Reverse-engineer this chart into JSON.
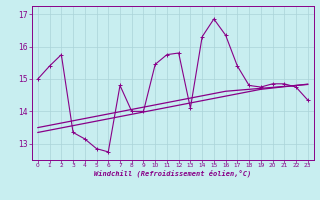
{
  "xlabel": "Windchill (Refroidissement éolien,°C)",
  "bg_color": "#c8eef0",
  "line_color": "#880088",
  "grid_color": "#aad4d8",
  "x_values": [
    0,
    1,
    2,
    3,
    4,
    5,
    6,
    7,
    8,
    9,
    10,
    11,
    12,
    13,
    14,
    15,
    16,
    17,
    18,
    19,
    20,
    21,
    22,
    23
  ],
  "y_main": [
    15.0,
    15.4,
    15.75,
    13.35,
    13.15,
    12.85,
    12.75,
    14.8,
    14.0,
    14.0,
    15.45,
    15.75,
    15.8,
    14.1,
    16.3,
    16.85,
    16.35,
    15.4,
    14.8,
    14.75,
    14.85,
    14.85,
    14.75,
    14.35
  ],
  "y_trend1": [
    13.35,
    13.42,
    13.49,
    13.56,
    13.63,
    13.7,
    13.77,
    13.84,
    13.91,
    13.98,
    14.05,
    14.12,
    14.19,
    14.26,
    14.33,
    14.4,
    14.47,
    14.54,
    14.61,
    14.68,
    14.72,
    14.76,
    14.8,
    14.84
  ],
  "y_trend2": [
    13.5,
    13.57,
    13.64,
    13.71,
    13.78,
    13.85,
    13.92,
    13.99,
    14.06,
    14.13,
    14.2,
    14.27,
    14.34,
    14.41,
    14.48,
    14.55,
    14.62,
    14.65,
    14.68,
    14.71,
    14.74,
    14.77,
    14.8,
    14.83
  ],
  "ylim": [
    12.5,
    17.25
  ],
  "yticks": [
    13,
    14,
    15,
    16,
    17
  ],
  "xlim": [
    -0.5,
    23.5
  ],
  "figsize": [
    3.2,
    2.0
  ],
  "dpi": 100
}
